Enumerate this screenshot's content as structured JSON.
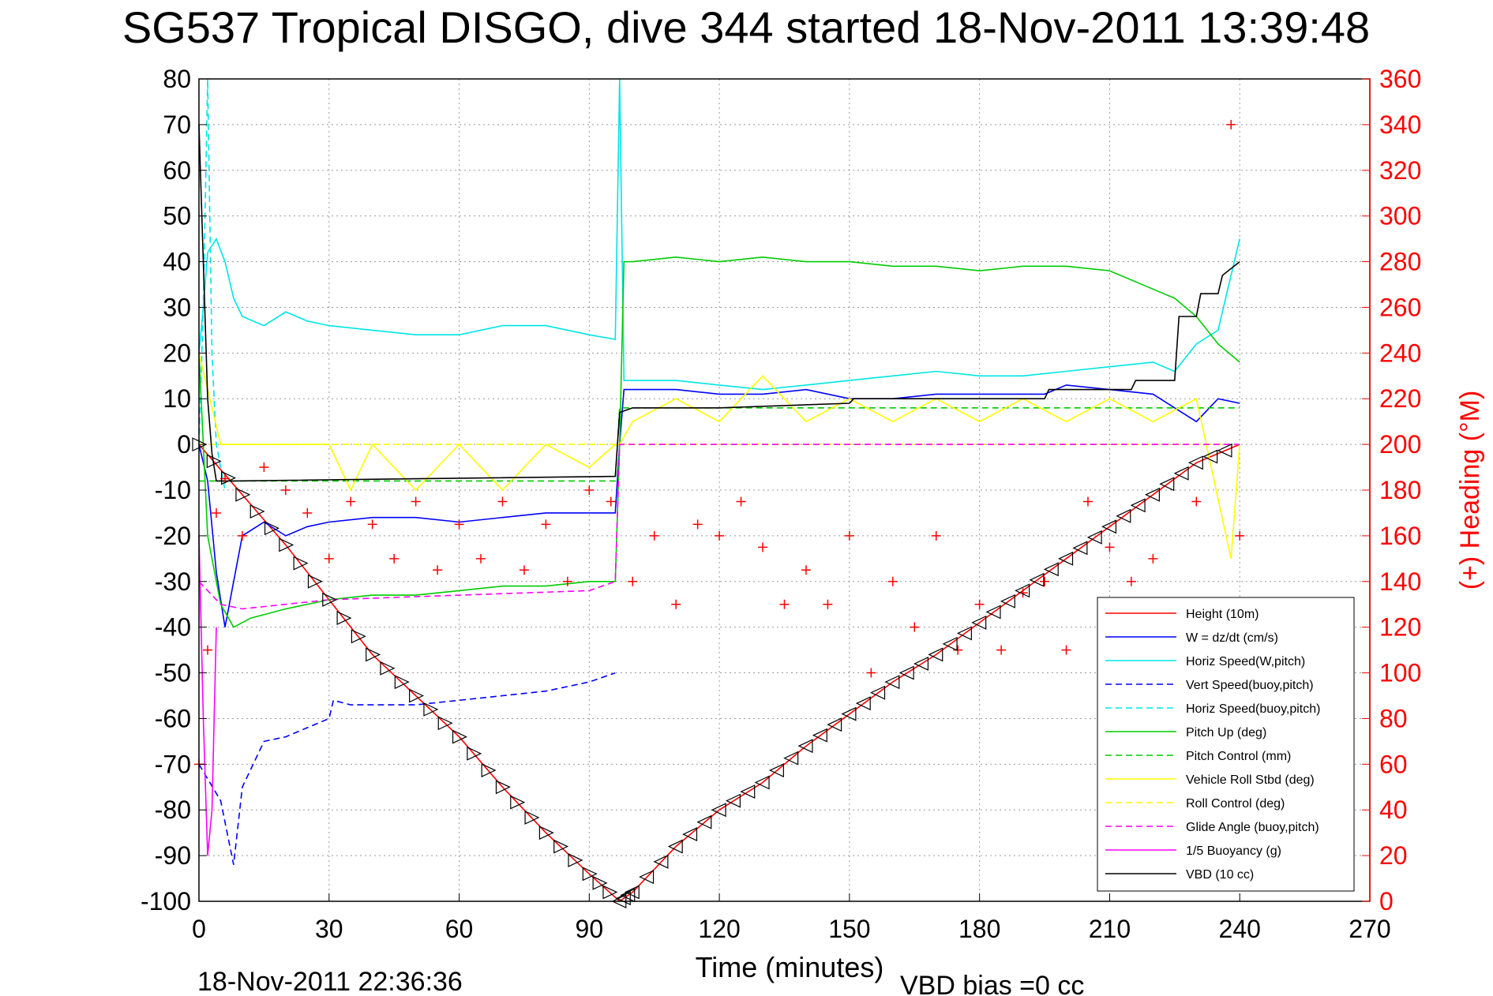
{
  "chart_data": {
    "type": "line",
    "title": "SG537 Tropical DISGO, dive 344 started 18-Nov-2011 13:39:48",
    "xlabel": "Time (minutes)",
    "ylabel_right": "(+) Heading (°M)",
    "xlim": [
      0,
      270
    ],
    "ylim": [
      -100,
      80
    ],
    "ylim_right": [
      0,
      360
    ],
    "x_ticks": [
      "0",
      "30",
      "60",
      "90",
      "120",
      "150",
      "180",
      "210",
      "240",
      "270"
    ],
    "y_ticks": [
      "80",
      "70",
      "60",
      "50",
      "40",
      "30",
      "20",
      "10",
      "0",
      "-10",
      "-20",
      "-30",
      "-40",
      "-50",
      "-60",
      "-70",
      "-80",
      "-90",
      "-100"
    ],
    "y_ticks_right": [
      "360",
      "340",
      "320",
      "300",
      "280",
      "260",
      "240",
      "220",
      "200",
      "180",
      "160",
      "140",
      "120",
      "100",
      "80",
      "60",
      "40",
      "20",
      "0"
    ],
    "grid": true,
    "legend_position": "bottom-right",
    "footer_left": "18-Nov-2011 22:36:36",
    "footer_right": "VBD bias =0 cc",
    "series": [
      {
        "name": "Height (10m)",
        "color": "#ff0000",
        "style": "solid",
        "x": [
          0,
          10,
          20,
          30,
          40,
          50,
          60,
          70,
          80,
          90,
          97,
          100,
          110,
          120,
          130,
          140,
          150,
          160,
          170,
          180,
          190,
          200,
          210,
          220,
          230,
          240
        ],
        "values": [
          0,
          -11,
          -22,
          -34,
          -46,
          -55,
          -64,
          -75,
          -85,
          -94,
          -100,
          -98,
          -88,
          -80,
          -74,
          -66,
          -59,
          -52,
          -46,
          -39,
          -32,
          -25,
          -18,
          -11,
          -4,
          0
        ]
      },
      {
        "name": "W = dz/dt (cm/s)",
        "color": "#0000ff",
        "style": "solid",
        "x": [
          0,
          2,
          4,
          6,
          10,
          15,
          20,
          25,
          30,
          40,
          50,
          60,
          70,
          80,
          90,
          96,
          97,
          98,
          100,
          110,
          120,
          130,
          140,
          150,
          160,
          170,
          180,
          190,
          195,
          200,
          210,
          220,
          225,
          230,
          235,
          240
        ],
        "values": [
          0,
          -8,
          -28,
          -40,
          -20,
          -17,
          -20,
          -18,
          -17,
          -16,
          -16,
          -17,
          -16,
          -15,
          -15,
          -15,
          0,
          12,
          12,
          12,
          11,
          11,
          12,
          10,
          10,
          11,
          11,
          11,
          11,
          13,
          12,
          11,
          8,
          5,
          10,
          9
        ]
      },
      {
        "name": "Horiz Speed(W,pitch)",
        "color": "#00e5e5",
        "style": "solid",
        "x": [
          0,
          1,
          2,
          4,
          6,
          8,
          10,
          15,
          20,
          25,
          30,
          40,
          50,
          60,
          70,
          80,
          90,
          96,
          97,
          98,
          100,
          110,
          120,
          130,
          140,
          150,
          160,
          170,
          180,
          190,
          200,
          210,
          220,
          225,
          230,
          235,
          240
        ],
        "values": [
          20,
          30,
          42,
          45,
          40,
          32,
          28,
          26,
          29,
          27,
          26,
          25,
          24,
          24,
          26,
          26,
          24,
          23,
          80,
          14,
          14,
          14,
          13,
          12,
          13,
          14,
          15,
          16,
          15,
          15,
          16,
          17,
          18,
          16,
          22,
          25,
          45
        ]
      },
      {
        "name": "Vert Speed(buoy,pitch)",
        "color": "#0000ff",
        "style": "dashed",
        "x": [
          0,
          5,
          8,
          10,
          15,
          20,
          25,
          30,
          31,
          35,
          40,
          50,
          60,
          70,
          80,
          90,
          96
        ],
        "values": [
          -70,
          -78,
          -92,
          -75,
          -65,
          -64,
          -62,
          -60,
          -56,
          -57,
          -57,
          -57,
          -56,
          -55,
          -54,
          -52,
          -50
        ]
      },
      {
        "name": "Horiz Speed(buoy,pitch)",
        "color": "#00e5e5",
        "style": "dashed",
        "x": [
          0,
          1,
          2,
          3,
          4,
          6
        ],
        "values": [
          0,
          30,
          80,
          20,
          0,
          -10
        ]
      },
      {
        "name": "Pitch Up (deg)",
        "color": "#00cc00",
        "style": "solid",
        "x": [
          0,
          2,
          5,
          8,
          12,
          20,
          30,
          40,
          50,
          60,
          70,
          80,
          90,
          96,
          97,
          98,
          100,
          110,
          120,
          130,
          140,
          150,
          160,
          170,
          180,
          190,
          200,
          210,
          220,
          225,
          230,
          235,
          240
        ],
        "values": [
          20,
          -20,
          -35,
          -40,
          -38,
          -36,
          -34,
          -33,
          -33,
          -32,
          -31,
          -31,
          -30,
          -30,
          0,
          40,
          40,
          41,
          40,
          41,
          40,
          40,
          39,
          39,
          38,
          39,
          39,
          38,
          34,
          32,
          28,
          22,
          18
        ]
      },
      {
        "name": "Pitch Control (mm)",
        "color": "#00cc00",
        "style": "dashed",
        "x": [
          0,
          5,
          96,
          97,
          240
        ],
        "values": [
          -8,
          -8,
          -8,
          8,
          8
        ]
      },
      {
        "name": "Vehicle Roll Stbd (deg)",
        "color": "#ffff00",
        "style": "solid",
        "x": [
          0,
          5,
          10,
          20,
          30,
          35,
          40,
          50,
          60,
          70,
          80,
          90,
          96,
          97,
          100,
          110,
          120,
          130,
          140,
          150,
          160,
          170,
          180,
          190,
          200,
          210,
          220,
          230,
          238,
          240
        ],
        "values": [
          20,
          0,
          0,
          0,
          0,
          -10,
          0,
          -10,
          0,
          -10,
          0,
          -5,
          0,
          0,
          5,
          10,
          5,
          15,
          5,
          10,
          5,
          10,
          5,
          10,
          5,
          10,
          5,
          10,
          -25,
          0
        ]
      },
      {
        "name": "Roll Control (deg)",
        "color": "#ffff00",
        "style": "dashed",
        "x": [
          0,
          96,
          97,
          240
        ],
        "values": [
          0,
          0,
          0,
          0
        ]
      },
      {
        "name": "Glide Angle (buoy,pitch)",
        "color": "#ff00ff",
        "style": "dashed",
        "x": [
          0,
          5,
          10,
          30,
          60,
          90,
          96,
          97,
          240
        ],
        "values": [
          -30,
          -35,
          -36,
          -34,
          -33,
          -32,
          -30,
          0,
          0
        ]
      },
      {
        "name": "1/5 Buoyancy (g)",
        "color": "#ff00ff",
        "style": "solid",
        "x": [
          0,
          1,
          2,
          3,
          4
        ],
        "values": [
          -20,
          -60,
          -90,
          -80,
          -40
        ]
      },
      {
        "name": "VBD (10 cc)",
        "color": "#000000",
        "style": "solid",
        "x": [
          0,
          1,
          2,
          3,
          4,
          8,
          96,
          97,
          100,
          120,
          150,
          151,
          180,
          195,
          196,
          215,
          216,
          225,
          226,
          230,
          231,
          235,
          236,
          240
        ],
        "values": [
          70,
          40,
          10,
          -2,
          -8,
          -8,
          -7,
          7,
          8,
          8,
          9,
          10,
          10,
          10,
          12,
          12,
          14,
          14,
          28,
          28,
          33,
          33,
          37,
          40
        ]
      },
      {
        "name": "(+) Heading (°M)",
        "color": "#ff0000",
        "style": "markers-plus",
        "axis": "right",
        "x": [
          0,
          2,
          4,
          6,
          10,
          15,
          20,
          25,
          30,
          35,
          40,
          45,
          50,
          55,
          60,
          65,
          70,
          75,
          80,
          85,
          90,
          95,
          100,
          105,
          110,
          115,
          120,
          125,
          130,
          135,
          140,
          145,
          150,
          155,
          160,
          165,
          170,
          175,
          180,
          185,
          190,
          195,
          200,
          205,
          210,
          215,
          220,
          225,
          230,
          235,
          238,
          240
        ],
        "values": [
          60,
          110,
          170,
          185,
          160,
          190,
          180,
          170,
          150,
          175,
          165,
          150,
          175,
          145,
          165,
          150,
          175,
          145,
          165,
          140,
          180,
          175,
          140,
          160,
          130,
          165,
          160,
          175,
          155,
          130,
          145,
          130,
          160,
          100,
          140,
          120,
          160,
          110,
          130,
          110,
          135,
          140,
          110,
          175,
          155,
          140,
          150,
          110,
          175,
          130,
          340,
          160
        ]
      }
    ],
    "markers": {
      "name": "Height markers",
      "color": "#000000",
      "shape": "triangle"
    }
  }
}
